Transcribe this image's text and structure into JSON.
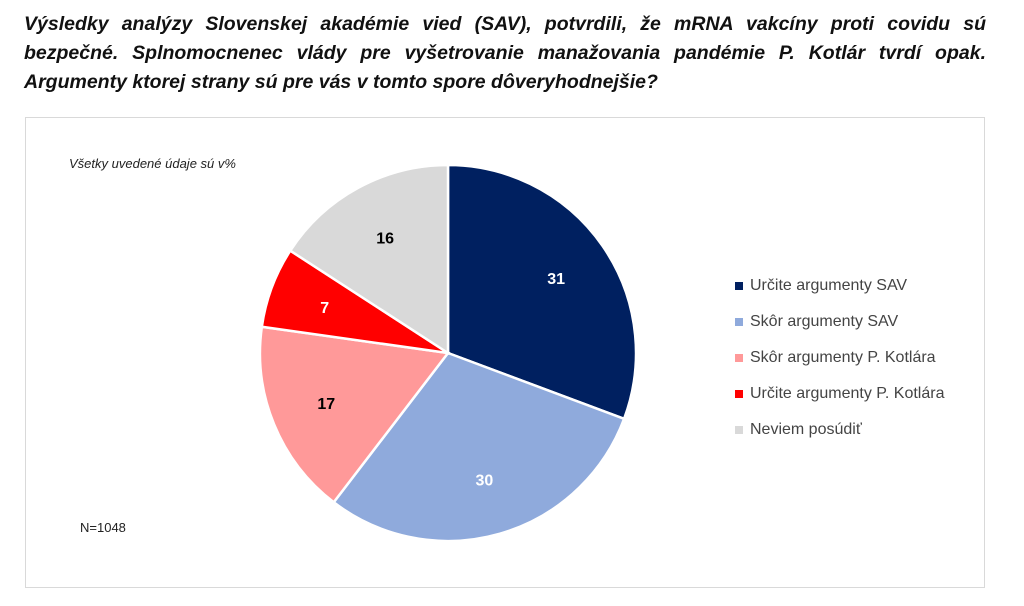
{
  "title": "Výsledky analýzy Slovenskej akadémie vied (SAV), potvrdili, že mRNA vakcíny proti covidu sú bezpečné. Splnomocnenec vlády pre vyšetrovanie manažovania pandémie P. Kotlár tvrdí opak. Argumenty ktorej strany sú pre vás v tomto spore dôveryhodnejšie?",
  "note": "Všetky uvedené údaje sú v%",
  "sample": "N=1048",
  "chart_data": {
    "type": "pie",
    "start": "top",
    "direction": "clockwise",
    "legend_position": "right",
    "categories": [
      "Určite argumenty SAV",
      "Skôr argumenty SAV",
      "Skôr argumenty P. Kotlára",
      "Určite argumenty P. Kotlára",
      "Neviem posúdiť"
    ],
    "values": [
      31,
      30,
      17,
      7,
      16
    ],
    "colors": [
      "#002060",
      "#8faadc",
      "#ff9999",
      "#ff0000",
      "#d9d9d9"
    ],
    "label_colors": [
      "#ffffff",
      "#ffffff",
      "#000000",
      "#ffffff",
      "#000000"
    ]
  }
}
